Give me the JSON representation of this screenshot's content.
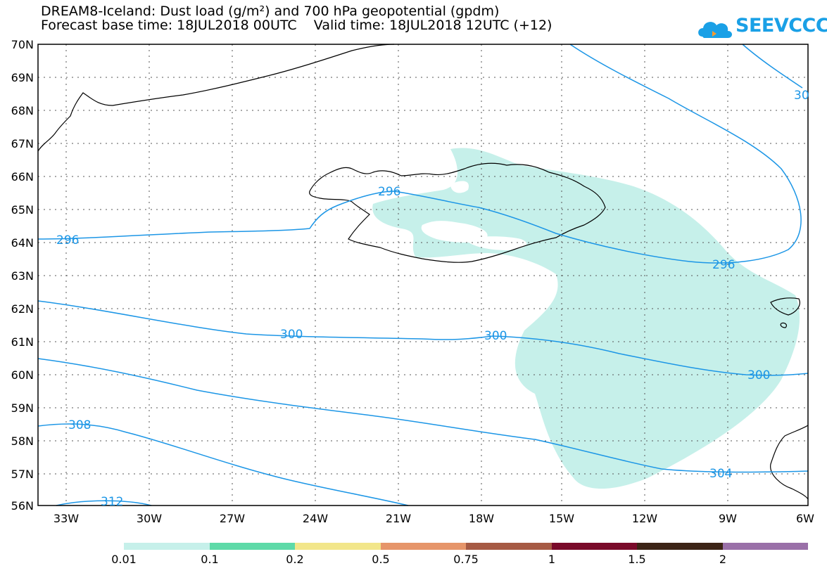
{
  "title": {
    "line1": "DREAM8-Iceland: Dust load (g/m²) and 700 hPa geopotential (gpdm)",
    "line2": "Forecast base time: 18JUL2018 00UTC    Valid time: 18JUL2018 12UTC (+12)"
  },
  "logo": {
    "text": "SEEVCCC",
    "icon": "cloud-icon"
  },
  "axes": {
    "lat_labels": [
      "70N",
      "69N",
      "68N",
      "67N",
      "66N",
      "65N",
      "64N",
      "63N",
      "62N",
      "61N",
      "60N",
      "59N",
      "58N",
      "57N",
      "56N"
    ],
    "lon_labels": [
      "33W",
      "30W",
      "27W",
      "24W",
      "21W",
      "18W",
      "15W",
      "12W",
      "9W",
      "6W"
    ]
  },
  "contour_labels": [
    "296",
    "296",
    "296",
    "300",
    "300",
    "300",
    "304",
    "308",
    "312",
    "30"
  ],
  "colorbar": {
    "labels": [
      "0.01",
      "0.1",
      "0.2",
      "0.5",
      "0.75",
      "1",
      "1.5",
      "2"
    ],
    "colors": [
      "#c6f0ea",
      "#5edaa8",
      "#f2e68a",
      "#e6956a",
      "#a65a44",
      "#7a0a2a",
      "#3c2416",
      "#9a70a8"
    ]
  },
  "colors": {
    "contour": "#1c96e6",
    "dust": "#c6f0ea",
    "coast": "#000000"
  }
}
